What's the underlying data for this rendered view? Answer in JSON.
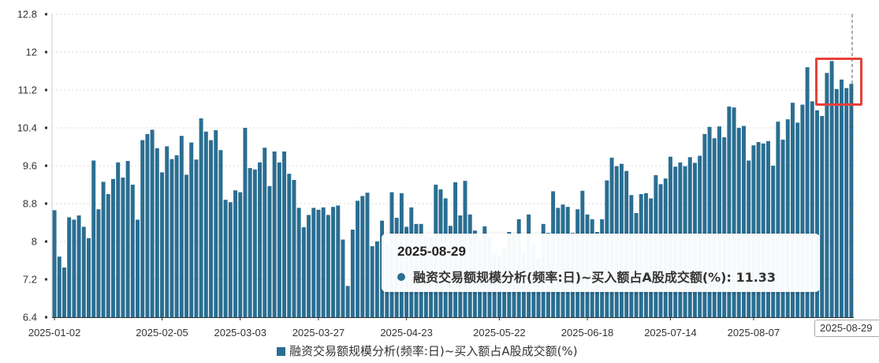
{
  "chart_data": {
    "type": "bar",
    "title": "",
    "xlabel": "",
    "ylabel": "",
    "ylim": [
      6.4,
      12.8
    ],
    "y_ticks": [
      "6.4",
      "7.2",
      "8",
      "8.8",
      "9.6",
      "10.4",
      "11.2",
      "12",
      "12.8"
    ],
    "x_tick_labels": [
      "2025-01-02",
      "2025-02-05",
      "2025-03-03",
      "2025-03-27",
      "2025-04-23",
      "2025-05-22",
      "2025-06-18",
      "2025-07-14",
      "2025-08-07"
    ],
    "grid": "horizontal-dashed",
    "legend_position": "bottom-center",
    "series": [
      {
        "name": "融资交易额规模分析(频率:日)~买入额占A股成交额(%)",
        "color": "#2a6e92",
        "values": [
          8.66,
          7.68,
          7.45,
          8.51,
          8.46,
          8.55,
          8.31,
          8.07,
          9.71,
          8.68,
          9.26,
          9,
          9.32,
          9.67,
          9.35,
          9.7,
          9.2,
          8.46,
          10.14,
          10.27,
          10.36,
          9.97,
          9.46,
          10.01,
          9.74,
          9.82,
          10.23,
          9.41,
          10.09,
          9.73,
          10.6,
          10.32,
          10.14,
          10.35,
          9.93,
          8.88,
          8.83,
          9.08,
          9.04,
          10.4,
          9.55,
          9.52,
          9.67,
          9.98,
          9.17,
          9.9,
          9.67,
          9.9,
          9.43,
          9.3,
          8.71,
          8.3,
          8.56,
          8.71,
          8.67,
          8.72,
          8.56,
          8.73,
          8.76,
          8.04,
          7.06,
          8.25,
          8.86,
          8.96,
          9.03,
          7.9,
          8.0,
          8.44,
          7.95,
          9.04,
          8.5,
          9.02,
          8.31,
          8.72,
          8.37,
          8.37,
          8.12,
          8.1,
          9.2,
          9.1,
          8.91,
          8.33,
          9.25,
          8.55,
          9.28,
          8.57,
          8.23,
          8.0,
          8.32,
          8.1,
          7.75,
          7.68,
          7.88,
          8.2,
          8.16,
          8.47,
          7.75,
          8.57,
          7.95,
          7.65,
          8.37,
          8.18,
          9.06,
          8.71,
          8.78,
          8.73,
          8.18,
          8.68,
          9.07,
          8.57,
          8.47,
          8.2,
          8.47,
          9.29,
          9.77,
          9.59,
          9.64,
          9.49,
          8.98,
          8.6,
          9.0,
          9.02,
          8.91,
          9.4,
          9.21,
          9.33,
          9.79,
          9.58,
          9.67,
          9.59,
          9.78,
          9.66,
          9.81,
          10.27,
          10.42,
          10.18,
          10.43,
          10.2,
          10.85,
          10.83,
          10.4,
          10.44,
          9.71,
          10.03,
          10.1,
          10.07,
          10.12,
          9.6,
          10.53,
          10.15,
          10.58,
          10.93,
          10.51,
          10.89,
          11.68,
          10.96,
          10.77,
          10.65,
          11.56,
          11.81,
          11.22,
          11.42,
          11.24,
          11.33
        ]
      }
    ],
    "x_tick_indices": [
      0,
      22,
      38,
      54,
      72,
      91,
      109,
      126,
      143
    ],
    "tooltip": {
      "date": "2025-08-29",
      "series_name": "融资交易额规模分析(频率:日)~买入额占A股成交额(%)",
      "value": "11.33"
    },
    "axis_pointer_label": "2025-08-29"
  }
}
